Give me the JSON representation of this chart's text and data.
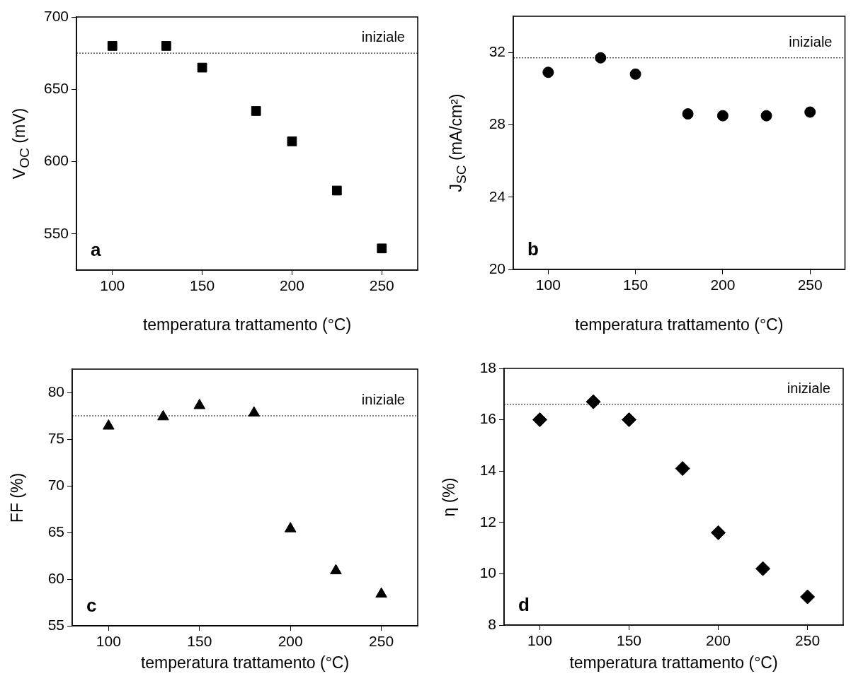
{
  "chart_data": [
    {
      "type": "scatter",
      "xlabel": "temperatura trattamento (°C)",
      "ylabel": "V$_{OC}$ (mV)",
      "x": [
        100,
        130,
        150,
        180,
        200,
        225,
        250
      ],
      "series": [
        {
          "color": "#000000",
          "values": [
            680,
            680,
            665,
            635,
            614,
            580,
            540
          ]
        }
      ],
      "marker": "square",
      "xlim": [
        80,
        270
      ],
      "xticks": [
        100,
        150,
        200,
        250
      ],
      "ylim": [
        525,
        700
      ],
      "yticks": [
        550,
        600,
        650,
        700
      ],
      "ref_lines": [
        {
          "axis": "y",
          "value": 675,
          "label": "iniziale",
          "line_style": "dotted"
        }
      ],
      "annotations": [
        "a"
      ]
    },
    {
      "type": "scatter",
      "xlabel": "temperatura trattamento (°C)",
      "ylabel": "J$_{SC}$ (mA/cm²)",
      "x": [
        100,
        130,
        150,
        180,
        200,
        225,
        250
      ],
      "series": [
        {
          "color": "#000000",
          "values": [
            30.9,
            31.7,
            30.8,
            28.6,
            28.5,
            28.5,
            28.7
          ]
        }
      ],
      "marker": "circle",
      "xlim": [
        80,
        270
      ],
      "xticks": [
        100,
        150,
        200,
        250
      ],
      "ylim": [
        20,
        34
      ],
      "yticks": [
        20,
        24,
        28,
        32
      ],
      "ref_lines": [
        {
          "axis": "y",
          "value": 31.7,
          "label": "iniziale",
          "line_style": "dotted"
        }
      ],
      "annotations": [
        "b"
      ]
    },
    {
      "type": "scatter",
      "xlabel": "temperatura trattamento (°C)",
      "ylabel": "FF (%)",
      "x": [
        100,
        130,
        150,
        180,
        200,
        225,
        250
      ],
      "series": [
        {
          "color": "#000000",
          "values": [
            76.4,
            77.4,
            78.6,
            77.8,
            65.4,
            60.9,
            58.4
          ]
        }
      ],
      "marker": "triangle",
      "xlim": [
        80,
        270
      ],
      "xticks": [
        100,
        150,
        200,
        250
      ],
      "ylim": [
        55,
        82.5
      ],
      "yticks": [
        55,
        60,
        65,
        70,
        75,
        80
      ],
      "ref_lines": [
        {
          "axis": "y",
          "value": 77.5,
          "label": "iniziale",
          "line_style": "dotted"
        }
      ],
      "annotations": [
        "c"
      ]
    },
    {
      "type": "scatter",
      "xlabel": "temperatura trattamento (°C)",
      "ylabel": "η (%)",
      "x": [
        100,
        130,
        150,
        180,
        200,
        225,
        250
      ],
      "series": [
        {
          "color": "#000000",
          "values": [
            16,
            16.7,
            16,
            14.1,
            11.6,
            10.2,
            9.1
          ]
        }
      ],
      "marker": "diamond",
      "xlim": [
        80,
        270
      ],
      "xticks": [
        100,
        150,
        200,
        250
      ],
      "ylim": [
        8,
        18
      ],
      "yticks": [
        8,
        10,
        12,
        14,
        16,
        18
      ],
      "ref_lines": [
        {
          "axis": "y",
          "value": 16.6,
          "label": "iniziale",
          "line_style": "dotted"
        }
      ],
      "annotations": [
        "d"
      ]
    }
  ]
}
